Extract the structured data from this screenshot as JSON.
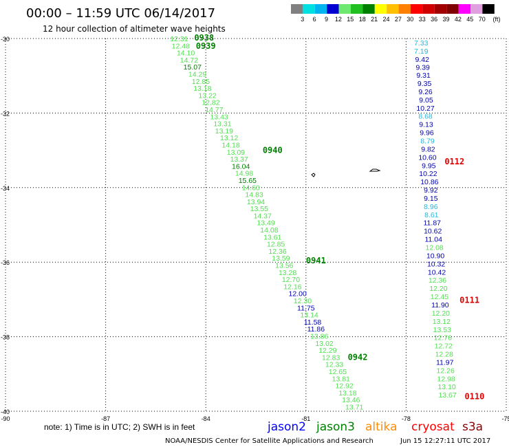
{
  "header": {
    "title": "00:00 – 11:59 UTC 06/14/2017",
    "subtitle": "12 hour collection of altimeter wave heights"
  },
  "colorbar": {
    "unit": "(ft)",
    "bins": [
      {
        "color": "#808080",
        "label": "3"
      },
      {
        "color": "#00e0e0",
        "label": "6"
      },
      {
        "color": "#00b4f0",
        "label": "9"
      },
      {
        "color": "#0000d0",
        "label": "12"
      },
      {
        "color": "#6fe86f",
        "label": "15"
      },
      {
        "color": "#20c020",
        "label": "18"
      },
      {
        "color": "#008000",
        "label": "21"
      },
      {
        "color": "#ffff00",
        "label": "24"
      },
      {
        "color": "#ffc000",
        "label": "27"
      },
      {
        "color": "#ff8000",
        "label": "30"
      },
      {
        "color": "#ff0000",
        "label": "33"
      },
      {
        "color": "#d00000",
        "label": "36"
      },
      {
        "color": "#a00000",
        "label": "39"
      },
      {
        "color": "#800000",
        "label": "42"
      },
      {
        "color": "#ff00ff",
        "label": "45"
      },
      {
        "color": "#e0a0e0",
        "label": "70"
      },
      {
        "color": "#000000",
        "label": ""
      }
    ]
  },
  "note": "note: 1) Time is in UTC; 2) SWH is in feet",
  "legend": [
    {
      "name": "jason2",
      "color": "#0000ff"
    },
    {
      "name": "jason3",
      "color": "#008000"
    },
    {
      "name": "altika",
      "color": "#ff8c00"
    },
    {
      "name": "cryosat",
      "color": "#ff0000"
    },
    {
      "name": "s3a",
      "color": "#8b0000"
    }
  ],
  "footer": {
    "credit": "NOAA/NESDIS Center for Satellite Applications and Research",
    "timestamp": "Jun 15 12:27:11 UTC 2017"
  },
  "chart_data": {
    "type": "scatter",
    "xlim": [
      -90,
      -75
    ],
    "ylim": [
      -40,
      -30
    ],
    "xticks": [
      "-90",
      "-87",
      "-84",
      "-81",
      "-78",
      "-75"
    ],
    "yticks": [
      "-30",
      "-32",
      "-34",
      "-36",
      "-38",
      "-40"
    ],
    "grid": true,
    "colors": {
      "cyan": "#20b8e0",
      "blue": "#0000b0",
      "light_green": "#50e050",
      "dark_green": "#008000",
      "red": "#e00000"
    },
    "series": [
      {
        "points": [
          {
            "x": -84.8,
            "y": -30.0,
            "v": "12.31",
            "c": "light_green"
          },
          {
            "x": -84.75,
            "y": -30.19,
            "v": "12.48",
            "c": "light_green"
          },
          {
            "x": -84.6,
            "y": -30.38,
            "v": "14.10",
            "c": "light_green"
          },
          {
            "x": -84.5,
            "y": -30.57,
            "v": "14.72",
            "c": "light_green"
          },
          {
            "x": -84.4,
            "y": -30.76,
            "v": "15.07",
            "c": "dark_green"
          },
          {
            "x": -84.25,
            "y": -30.95,
            "v": "14.29",
            "c": "light_green"
          },
          {
            "x": -84.15,
            "y": -31.14,
            "v": "12.85",
            "c": "light_green"
          },
          {
            "x": -84.1,
            "y": -31.33,
            "v": "13.18",
            "c": "light_green"
          },
          {
            "x": -83.95,
            "y": -31.52,
            "v": "13.22",
            "c": "light_green"
          },
          {
            "x": -83.85,
            "y": -31.71,
            "v": "12.82",
            "c": "light_green"
          },
          {
            "x": -83.75,
            "y": -31.9,
            "v": "14.77",
            "c": "light_green"
          },
          {
            "x": -83.6,
            "y": -32.09,
            "v": "13.43",
            "c": "light_green"
          },
          {
            "x": -83.5,
            "y": -32.28,
            "v": "13.31",
            "c": "light_green"
          },
          {
            "x": -83.45,
            "y": -32.47,
            "v": "13.19",
            "c": "light_green"
          },
          {
            "x": -83.3,
            "y": -32.66,
            "v": "13.12",
            "c": "light_green"
          },
          {
            "x": -83.25,
            "y": -32.85,
            "v": "14.18",
            "c": "light_green"
          },
          {
            "x": -83.1,
            "y": -33.04,
            "v": "13.09",
            "c": "light_green"
          },
          {
            "x": -83.0,
            "y": -33.23,
            "v": "13.37",
            "c": "light_green"
          },
          {
            "x": -82.95,
            "y": -33.42,
            "v": "16.04",
            "c": "dark_green"
          },
          {
            "x": -82.85,
            "y": -33.61,
            "v": "14.98",
            "c": "light_green"
          },
          {
            "x": -82.75,
            "y": -33.8,
            "v": "15.65",
            "c": "dark_green"
          },
          {
            "x": -82.65,
            "y": -33.99,
            "v": "14.60",
            "c": "light_green"
          },
          {
            "x": -82.55,
            "y": -34.18,
            "v": "14.83",
            "c": "light_green"
          },
          {
            "x": -82.5,
            "y": -34.37,
            "v": "13.94",
            "c": "light_green"
          },
          {
            "x": -82.4,
            "y": -34.56,
            "v": "13.55",
            "c": "light_green"
          },
          {
            "x": -82.3,
            "y": -34.75,
            "v": "14.37",
            "c": "light_green"
          },
          {
            "x": -82.2,
            "y": -34.94,
            "v": "13.49",
            "c": "light_green"
          },
          {
            "x": -82.1,
            "y": -35.13,
            "v": "14.08",
            "c": "light_green"
          },
          {
            "x": -82.0,
            "y": -35.32,
            "v": "13.61",
            "c": "light_green"
          },
          {
            "x": -81.9,
            "y": -35.51,
            "v": "12.85",
            "c": "light_green"
          },
          {
            "x": -81.85,
            "y": -35.7,
            "v": "12.36",
            "c": "light_green"
          },
          {
            "x": -81.75,
            "y": -35.89,
            "v": "13.59",
            "c": "light_green"
          },
          {
            "x": -81.65,
            "y": -36.08,
            "v": "13.56",
            "c": "light_green"
          },
          {
            "x": -81.55,
            "y": -36.27,
            "v": "13.28",
            "c": "light_green"
          },
          {
            "x": -81.45,
            "y": -36.46,
            "v": "12.70",
            "c": "light_green"
          },
          {
            "x": -81.4,
            "y": -36.65,
            "v": "12.16",
            "c": "light_green"
          },
          {
            "x": -81.25,
            "y": -36.84,
            "v": "12.00",
            "c": "blue"
          },
          {
            "x": -81.1,
            "y": -37.03,
            "v": "12.30",
            "c": "light_green"
          },
          {
            "x": -81.0,
            "y": -37.22,
            "v": "11.75",
            "c": "blue"
          },
          {
            "x": -80.9,
            "y": -37.41,
            "v": "13.14",
            "c": "light_green"
          },
          {
            "x": -80.8,
            "y": -37.6,
            "v": "11.58",
            "c": "blue"
          },
          {
            "x": -80.7,
            "y": -37.79,
            "v": "11.86",
            "c": "blue"
          },
          {
            "x": -80.6,
            "y": -37.98,
            "v": "13.86",
            "c": "light_green"
          },
          {
            "x": -80.45,
            "y": -38.17,
            "v": "13.02",
            "c": "light_green"
          },
          {
            "x": -80.35,
            "y": -38.36,
            "v": "12.29",
            "c": "light_green"
          },
          {
            "x": -80.25,
            "y": -38.55,
            "v": "12.83",
            "c": "light_green"
          },
          {
            "x": -80.15,
            "y": -38.74,
            "v": "12.33",
            "c": "light_green"
          },
          {
            "x": -80.05,
            "y": -38.93,
            "v": "12.65",
            "c": "light_green"
          },
          {
            "x": -79.95,
            "y": -39.12,
            "v": "13.81",
            "c": "light_green"
          },
          {
            "x": -79.85,
            "y": -39.31,
            "v": "12.92",
            "c": "light_green"
          },
          {
            "x": -79.75,
            "y": -39.5,
            "v": "13.18",
            "c": "light_green"
          },
          {
            "x": -79.65,
            "y": -39.69,
            "v": "13.46",
            "c": "light_green"
          },
          {
            "x": -79.55,
            "y": -39.88,
            "v": "13.71",
            "c": "light_green"
          }
        ]
      },
      {
        "points": [
          {
            "x": -77.55,
            "y": -30.11,
            "v": "7.33",
            "c": "cyan"
          },
          {
            "x": -77.55,
            "y": -30.33,
            "v": "7.19",
            "c": "cyan"
          },
          {
            "x": -77.52,
            "y": -30.55,
            "v": "9.42",
            "c": "blue"
          },
          {
            "x": -77.5,
            "y": -30.77,
            "v": "9.39",
            "c": "blue"
          },
          {
            "x": -77.48,
            "y": -30.98,
            "v": "9.31",
            "c": "blue"
          },
          {
            "x": -77.45,
            "y": -31.2,
            "v": "9.35",
            "c": "blue"
          },
          {
            "x": -77.42,
            "y": -31.42,
            "v": "9.26",
            "c": "blue"
          },
          {
            "x": -77.4,
            "y": -31.64,
            "v": "9.05",
            "c": "blue"
          },
          {
            "x": -77.42,
            "y": -31.86,
            "v": "10.27",
            "c": "blue"
          },
          {
            "x": -77.42,
            "y": -32.08,
            "v": "8.68",
            "c": "cyan"
          },
          {
            "x": -77.4,
            "y": -32.3,
            "v": "9.13",
            "c": "blue"
          },
          {
            "x": -77.38,
            "y": -32.52,
            "v": "9.96",
            "c": "blue"
          },
          {
            "x": -77.36,
            "y": -32.74,
            "v": "8.79",
            "c": "cyan"
          },
          {
            "x": -77.34,
            "y": -32.96,
            "v": "9.82",
            "c": "blue"
          },
          {
            "x": -77.36,
            "y": -33.18,
            "v": "10.60",
            "c": "blue"
          },
          {
            "x": -77.32,
            "y": -33.4,
            "v": "9.95",
            "c": "blue"
          },
          {
            "x": -77.34,
            "y": -33.62,
            "v": "10.22",
            "c": "blue"
          },
          {
            "x": -77.3,
            "y": -33.84,
            "v": "10.86",
            "c": "blue"
          },
          {
            "x": -77.26,
            "y": -34.06,
            "v": "9.92",
            "c": "blue"
          },
          {
            "x": -77.26,
            "y": -34.28,
            "v": "9.15",
            "c": "blue"
          },
          {
            "x": -77.26,
            "y": -34.5,
            "v": "8.96",
            "c": "cyan"
          },
          {
            "x": -77.24,
            "y": -34.72,
            "v": "8.61",
            "c": "cyan"
          },
          {
            "x": -77.22,
            "y": -34.94,
            "v": "11.87",
            "c": "blue"
          },
          {
            "x": -77.2,
            "y": -35.16,
            "v": "10.62",
            "c": "blue"
          },
          {
            "x": -77.18,
            "y": -35.38,
            "v": "11.04",
            "c": "blue"
          },
          {
            "x": -77.15,
            "y": -35.6,
            "v": "12.08",
            "c": "light_green"
          },
          {
            "x": -77.12,
            "y": -35.82,
            "v": "10.90",
            "c": "blue"
          },
          {
            "x": -77.1,
            "y": -36.04,
            "v": "10.32",
            "c": "blue"
          },
          {
            "x": -77.08,
            "y": -36.26,
            "v": "10.42",
            "c": "blue"
          },
          {
            "x": -77.06,
            "y": -36.48,
            "v": "12.36",
            "c": "light_green"
          },
          {
            "x": -77.03,
            "y": -36.7,
            "v": "12.20",
            "c": "light_green"
          },
          {
            "x": -77.0,
            "y": -36.92,
            "v": "12.45",
            "c": "light_green"
          },
          {
            "x": -76.98,
            "y": -37.14,
            "v": "11.90",
            "c": "blue"
          },
          {
            "x": -76.96,
            "y": -37.36,
            "v": "12.20",
            "c": "light_green"
          },
          {
            "x": -76.94,
            "y": -37.58,
            "v": "13.12",
            "c": "light_green"
          },
          {
            "x": -76.92,
            "y": -37.8,
            "v": "13.53",
            "c": "light_green"
          },
          {
            "x": -76.9,
            "y": -38.02,
            "v": "12.76",
            "c": "light_green"
          },
          {
            "x": -76.88,
            "y": -38.24,
            "v": "12.72",
            "c": "light_green"
          },
          {
            "x": -76.86,
            "y": -38.46,
            "v": "12.28",
            "c": "light_green"
          },
          {
            "x": -76.84,
            "y": -38.68,
            "v": "11.97",
            "c": "blue"
          },
          {
            "x": -76.82,
            "y": -38.9,
            "v": "12.26",
            "c": "light_green"
          },
          {
            "x": -76.8,
            "y": -39.12,
            "v": "12.98",
            "c": "light_green"
          },
          {
            "x": -76.78,
            "y": -39.34,
            "v": "13.10",
            "c": "light_green"
          },
          {
            "x": -76.76,
            "y": -39.56,
            "v": "13.67",
            "c": "light_green"
          }
        ]
      }
    ],
    "time_labels": [
      {
        "x": -84.05,
        "y": -29.98,
        "text": "0938",
        "c": "dark_green"
      },
      {
        "x": -84.0,
        "y": -30.2,
        "text": "0939",
        "c": "dark_green"
      },
      {
        "x": -82.0,
        "y": -33.0,
        "text": "0940",
        "c": "dark_green"
      },
      {
        "x": -80.7,
        "y": -35.96,
        "text": "0941",
        "c": "dark_green"
      },
      {
        "x": -79.45,
        "y": -38.55,
        "text": "0942",
        "c": "dark_green"
      },
      {
        "x": -76.55,
        "y": -33.3,
        "text": "0112",
        "c": "red"
      },
      {
        "x": -76.1,
        "y": -37.02,
        "text": "0111",
        "c": "red"
      },
      {
        "x": -75.95,
        "y": -39.6,
        "text": "0110",
        "c": "red"
      }
    ]
  }
}
